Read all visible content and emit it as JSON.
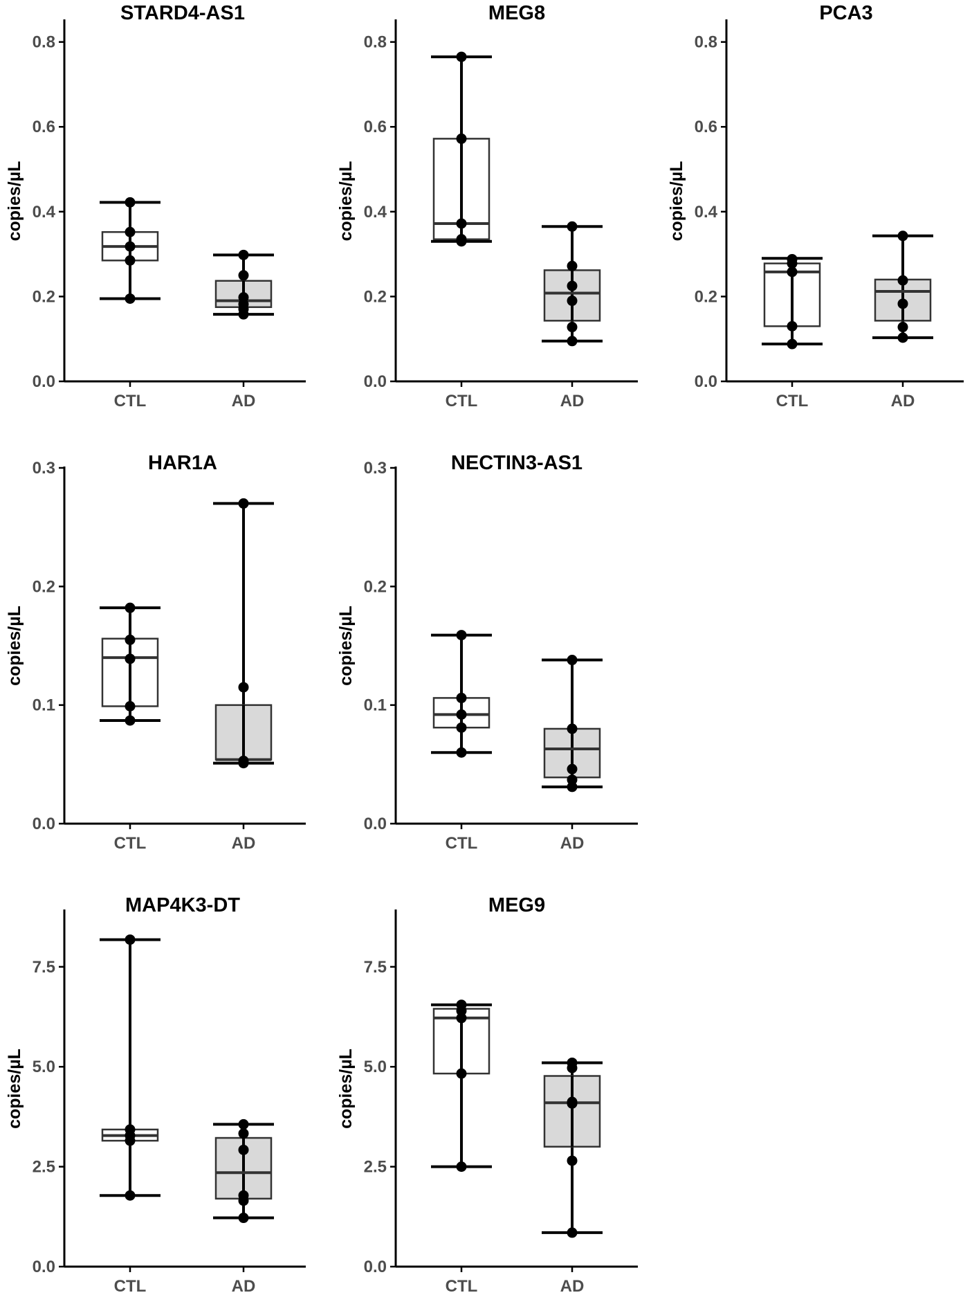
{
  "colors": {
    "ctl_box_fill": "#ffffff",
    "ad_box_fill": "#d9d9d9",
    "box_stroke": "#333333",
    "point": "#000000",
    "axis": "#000000",
    "tick_text": "#4d4d4d"
  },
  "chart_data": [
    {
      "type": "box",
      "title": "STARD4-AS1",
      "xlabel": "",
      "ylabel": "copies/µL",
      "ylim": [
        0,
        0.85
      ],
      "yticks": [
        "0.0",
        "0.2",
        "0.4",
        "0.6",
        "0.8"
      ],
      "ytick_values": [
        0,
        0.2,
        0.4,
        0.6,
        0.8
      ],
      "categories": [
        "CTL",
        "AD"
      ],
      "groups": [
        {
          "name": "CTL",
          "whisker_low": 0.195,
          "q1": 0.285,
          "median": 0.318,
          "q3": 0.352,
          "whisker_high": 0.422,
          "points": [
            0.195,
            0.285,
            0.318,
            0.352,
            0.422
          ]
        },
        {
          "name": "AD",
          "whisker_low": 0.158,
          "q1": 0.175,
          "median": 0.19,
          "q3": 0.237,
          "whisker_high": 0.298,
          "points": [
            0.158,
            0.17,
            0.182,
            0.198,
            0.25,
            0.298
          ]
        }
      ]
    },
    {
      "type": "box",
      "title": "MEG8",
      "xlabel": "",
      "ylabel": "copies/µL",
      "ylim": [
        0,
        0.85
      ],
      "yticks": [
        "0.0",
        "0.2",
        "0.4",
        "0.6",
        "0.8"
      ],
      "ytick_values": [
        0,
        0.2,
        0.4,
        0.6,
        0.8
      ],
      "categories": [
        "CTL",
        "AD"
      ],
      "groups": [
        {
          "name": "CTL",
          "whisker_low": 0.33,
          "q1": 0.335,
          "median": 0.372,
          "q3": 0.572,
          "whisker_high": 0.765,
          "points": [
            0.33,
            0.335,
            0.372,
            0.572,
            0.765
          ]
        },
        {
          "name": "AD",
          "whisker_low": 0.095,
          "q1": 0.143,
          "median": 0.208,
          "q3": 0.262,
          "whisker_high": 0.365,
          "points": [
            0.095,
            0.128,
            0.19,
            0.225,
            0.272,
            0.365
          ]
        }
      ]
    },
    {
      "type": "box",
      "title": "PCA3",
      "xlabel": "",
      "ylabel": "copies/µL",
      "ylim": [
        0,
        0.85
      ],
      "yticks": [
        "0.0",
        "0.2",
        "0.4",
        "0.6",
        "0.8"
      ],
      "ytick_values": [
        0,
        0.2,
        0.4,
        0.6,
        0.8
      ],
      "categories": [
        "CTL",
        "AD"
      ],
      "groups": [
        {
          "name": "CTL",
          "whisker_low": 0.088,
          "q1": 0.13,
          "median": 0.258,
          "q3": 0.278,
          "whisker_high": 0.29,
          "points": [
            0.088,
            0.13,
            0.258,
            0.278,
            0.288
          ]
        },
        {
          "name": "AD",
          "whisker_low": 0.103,
          "q1": 0.143,
          "median": 0.212,
          "q3": 0.24,
          "whisker_high": 0.343,
          "points": [
            0.103,
            0.128,
            0.183,
            0.238,
            0.343
          ]
        }
      ]
    },
    {
      "type": "box",
      "title": "HAR1A",
      "xlabel": "",
      "ylabel": "copies/µL",
      "ylim": [
        0,
        0.3
      ],
      "yticks": [
        "0.0",
        "0.1",
        "0.2",
        "0.3"
      ],
      "ytick_values": [
        0,
        0.1,
        0.2,
        0.3
      ],
      "categories": [
        "CTL",
        "AD"
      ],
      "groups": [
        {
          "name": "CTL",
          "whisker_low": 0.087,
          "q1": 0.099,
          "median": 0.14,
          "q3": 0.156,
          "whisker_high": 0.182,
          "points": [
            0.087,
            0.099,
            0.139,
            0.155,
            0.182
          ]
        },
        {
          "name": "AD",
          "whisker_low": 0.051,
          "q1": 0.054,
          "median": 0.054,
          "q3": 0.1,
          "whisker_high": 0.27,
          "points": [
            0.051,
            0.053,
            0.115,
            0.27
          ]
        }
      ]
    },
    {
      "type": "box",
      "title": "NECTIN3-AS1",
      "xlabel": "",
      "ylabel": "copies/µL",
      "ylim": [
        0,
        0.3
      ],
      "yticks": [
        "0.0",
        "0.1",
        "0.2",
        "0.3"
      ],
      "ytick_values": [
        0,
        0.1,
        0.2,
        0.3
      ],
      "categories": [
        "CTL",
        "AD"
      ],
      "groups": [
        {
          "name": "CTL",
          "whisker_low": 0.06,
          "q1": 0.081,
          "median": 0.092,
          "q3": 0.106,
          "whisker_high": 0.159,
          "points": [
            0.06,
            0.081,
            0.092,
            0.106,
            0.159
          ]
        },
        {
          "name": "AD",
          "whisker_low": 0.031,
          "q1": 0.039,
          "median": 0.063,
          "q3": 0.08,
          "whisker_high": 0.138,
          "points": [
            0.031,
            0.037,
            0.046,
            0.08,
            0.138
          ]
        }
      ]
    },
    {
      "type": "box",
      "title": "MAP4K3-DT",
      "xlabel": "",
      "ylabel": "copies/µL",
      "ylim": [
        0,
        8.9
      ],
      "yticks": [
        "0.0",
        "2.5",
        "5.0",
        "7.5"
      ],
      "ytick_values": [
        0,
        2.5,
        5.0,
        7.5
      ],
      "categories": [
        "CTL",
        "AD"
      ],
      "groups": [
        {
          "name": "CTL",
          "whisker_low": 1.78,
          "q1": 3.15,
          "median": 3.28,
          "q3": 3.43,
          "whisker_high": 8.18,
          "points": [
            1.78,
            3.15,
            3.28,
            3.43,
            8.18
          ]
        },
        {
          "name": "AD",
          "whisker_low": 1.22,
          "q1": 1.7,
          "median": 2.35,
          "q3": 3.22,
          "whisker_high": 3.56,
          "points": [
            1.22,
            1.65,
            1.78,
            2.92,
            3.33,
            3.56
          ]
        }
      ]
    },
    {
      "type": "box",
      "title": "MEG9",
      "xlabel": "",
      "ylabel": "copies/µL",
      "ylim": [
        0,
        8.9
      ],
      "yticks": [
        "0.0",
        "2.5",
        "5.0",
        "7.5"
      ],
      "ytick_values": [
        0,
        2.5,
        5.0,
        7.5
      ],
      "categories": [
        "CTL",
        "AD"
      ],
      "groups": [
        {
          "name": "CTL",
          "whisker_low": 2.5,
          "q1": 4.83,
          "median": 6.22,
          "q3": 6.45,
          "whisker_high": 6.55,
          "points": [
            2.5,
            4.83,
            6.22,
            6.4,
            6.55
          ]
        },
        {
          "name": "AD",
          "whisker_low": 0.85,
          "q1": 3.0,
          "median": 4.1,
          "q3": 4.77,
          "whisker_high": 5.1,
          "points": [
            0.85,
            2.65,
            4.08,
            4.12,
            4.97,
            5.1
          ]
        }
      ]
    }
  ]
}
